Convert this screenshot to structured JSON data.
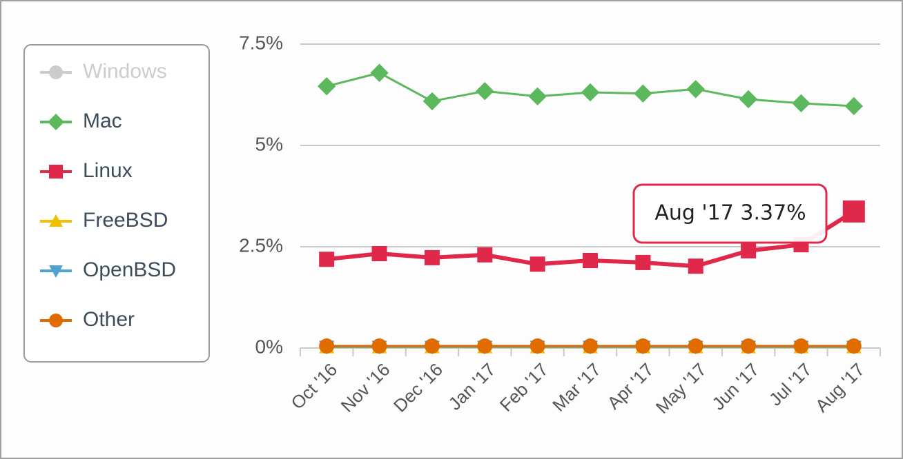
{
  "chart_data": {
    "type": "line",
    "categories": [
      "Oct '16",
      "Nov '16",
      "Dec '16",
      "Jan '17",
      "Feb '17",
      "Mar '17",
      "Apr '17",
      "May '17",
      "Jun '17",
      "Jul '17",
      "Aug '17"
    ],
    "series": [
      {
        "name": "Windows",
        "color": "#cccccc",
        "marker": "circle",
        "visible": false,
        "values": [
          null,
          null,
          null,
          null,
          null,
          null,
          null,
          null,
          null,
          null,
          null
        ]
      },
      {
        "name": "Mac",
        "color": "#5cb85c",
        "marker": "diamond",
        "visible": true,
        "values": [
          6.46,
          6.79,
          6.09,
          6.34,
          6.21,
          6.31,
          6.28,
          6.39,
          6.14,
          6.04,
          5.97
        ]
      },
      {
        "name": "Linux",
        "color": "#e0294a",
        "marker": "square",
        "visible": true,
        "values": [
          2.19,
          2.33,
          2.23,
          2.3,
          2.07,
          2.16,
          2.11,
          2.02,
          2.4,
          2.55,
          3.37
        ]
      },
      {
        "name": "FreeBSD",
        "color": "#f0c000",
        "marker": "triangle",
        "visible": true,
        "values": [
          0.02,
          0.02,
          0.02,
          0.02,
          0.02,
          0.02,
          0.02,
          0.02,
          0.02,
          0.02,
          0.02
        ]
      },
      {
        "name": "OpenBSD",
        "color": "#4fa3d1",
        "marker": "triangle-down",
        "visible": true,
        "values": [
          0.03,
          0.03,
          0.03,
          0.03,
          0.03,
          0.03,
          0.03,
          0.03,
          0.03,
          0.03,
          0.03
        ]
      },
      {
        "name": "Other",
        "color": "#e06c00",
        "marker": "circle",
        "visible": true,
        "values": [
          0.05,
          0.05,
          0.05,
          0.05,
          0.05,
          0.05,
          0.05,
          0.05,
          0.05,
          0.05,
          0.05
        ]
      }
    ],
    "ylim": [
      0,
      7.5
    ],
    "yticks": [
      {
        "value": 0,
        "label": "0%"
      },
      {
        "value": 2.5,
        "label": "2.5%"
      },
      {
        "value": 5,
        "label": "5%"
      },
      {
        "value": 7.5,
        "label": "7.5%"
      }
    ],
    "grid": true,
    "legend": "left",
    "tooltip": "Aug '17 3.37%"
  }
}
